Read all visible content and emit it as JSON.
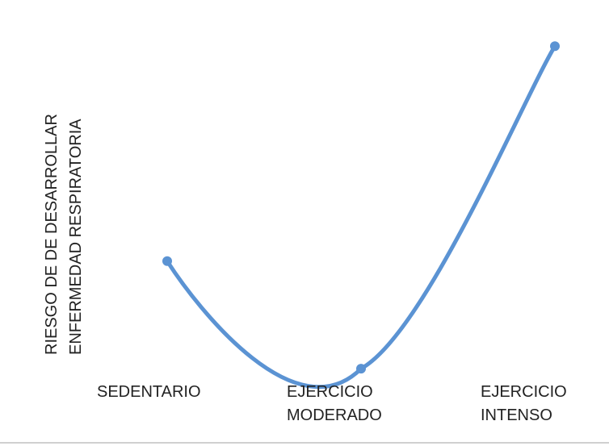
{
  "chart_data": {
    "type": "line",
    "y_label": [
      "RIESGO DE DE DESARROLLAR",
      "ENFERMEDAD RESPIRATORIA"
    ],
    "categories": [
      "SEDENTARIO",
      "EJERCICIO MODERADO",
      "EJERCICIO INTENSO"
    ],
    "values": [
      3.4,
      0.3,
      9.6
    ],
    "color": "#5b93d3",
    "ylim": [
      0,
      10
    ]
  }
}
